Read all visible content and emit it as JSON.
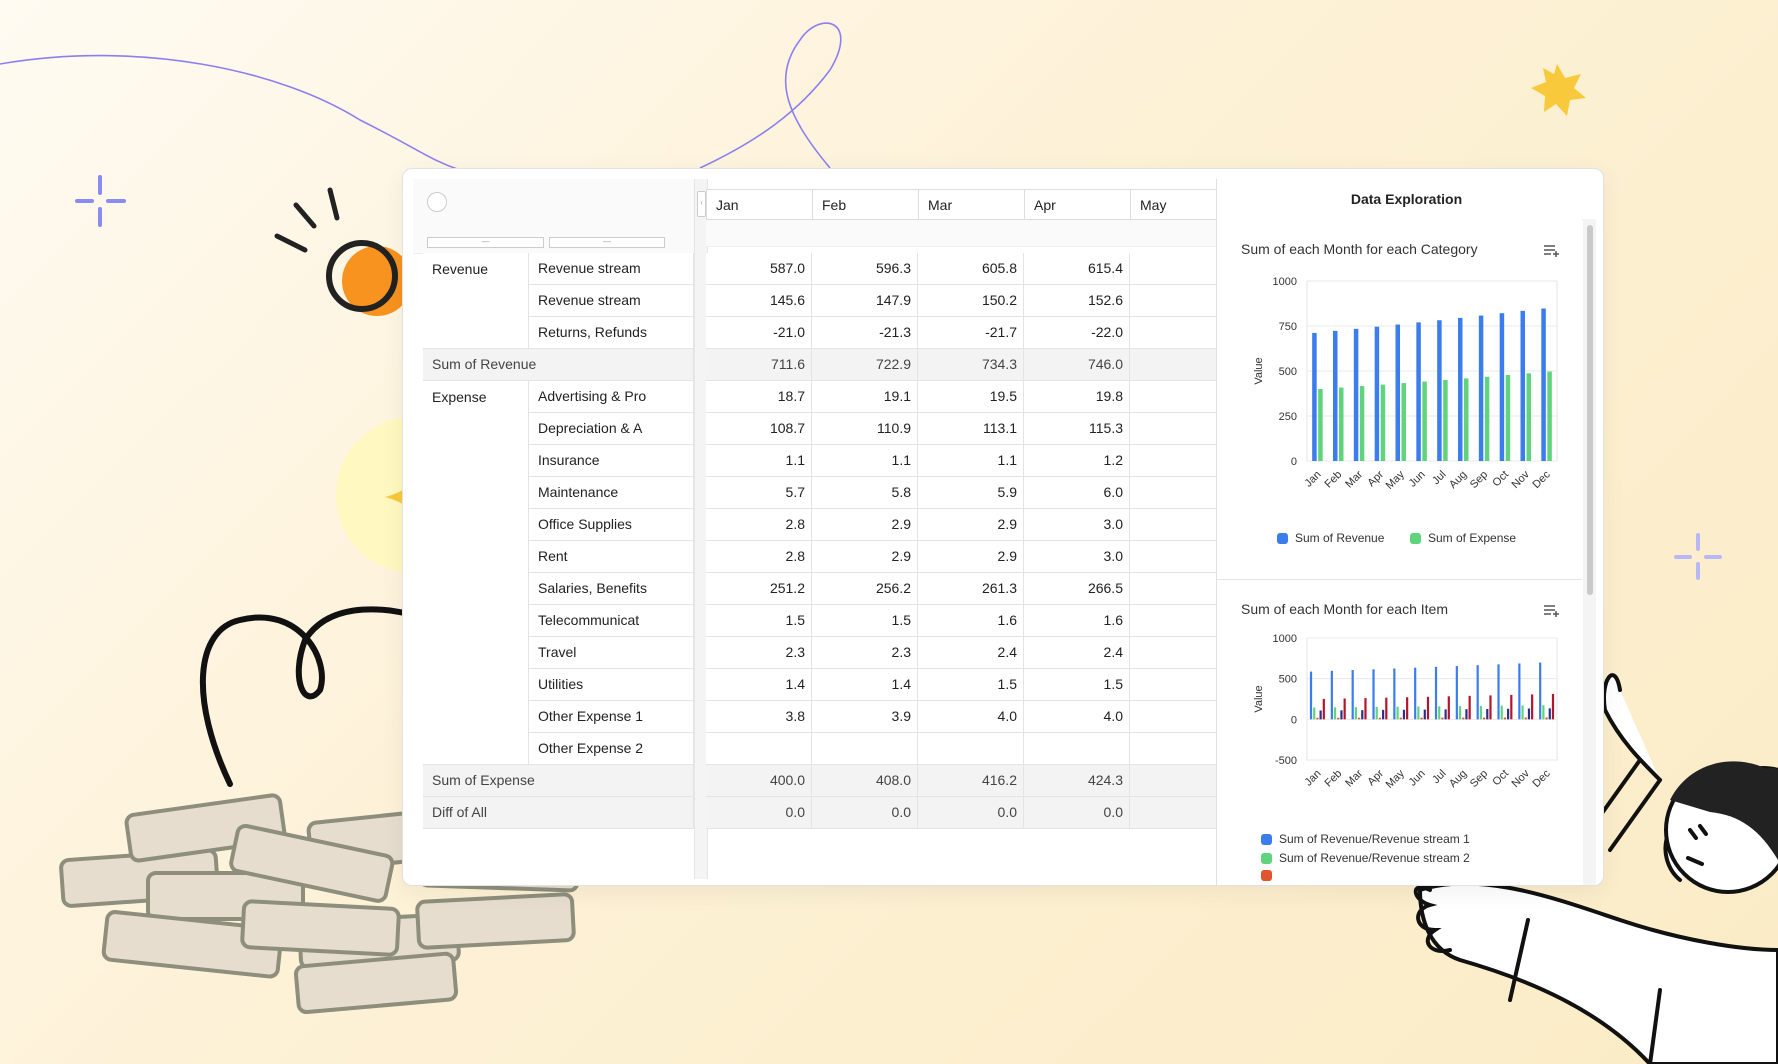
{
  "pivot": {
    "months": [
      "Jan",
      "Feb",
      "Mar",
      "Apr",
      "May"
    ],
    "groups": [
      {
        "label": "Revenue",
        "rows": [
          {
            "item": "Revenue stream",
            "values": [
              "587.0",
              "596.3",
              "605.8",
              "615.4",
              ""
            ]
          },
          {
            "item": "Revenue stream",
            "values": [
              "145.6",
              "147.9",
              "150.2",
              "152.6",
              ""
            ]
          },
          {
            "item": "Returns, Refunds",
            "values": [
              "-21.0",
              "-21.3",
              "-21.7",
              "-22.0",
              ""
            ]
          }
        ]
      },
      {
        "label": "Expense",
        "rows": [
          {
            "item": "Advertising & Pro",
            "values": [
              "18.7",
              "19.1",
              "19.5",
              "19.8",
              ""
            ]
          },
          {
            "item": "Depreciation & A",
            "values": [
              "108.7",
              "110.9",
              "113.1",
              "115.3",
              ""
            ]
          },
          {
            "item": "Insurance",
            "values": [
              "1.1",
              "1.1",
              "1.1",
              "1.2",
              ""
            ]
          },
          {
            "item": "Maintenance",
            "values": [
              "5.7",
              "5.8",
              "5.9",
              "6.0",
              ""
            ]
          },
          {
            "item": "Office Supplies",
            "values": [
              "2.8",
              "2.9",
              "2.9",
              "3.0",
              ""
            ]
          },
          {
            "item": "Rent",
            "values": [
              "2.8",
              "2.9",
              "2.9",
              "3.0",
              ""
            ]
          },
          {
            "item": "Salaries, Benefits",
            "values": [
              "251.2",
              "256.2",
              "261.3",
              "266.5",
              ""
            ]
          },
          {
            "item": "Telecommunicat",
            "values": [
              "1.5",
              "1.5",
              "1.6",
              "1.6",
              ""
            ]
          },
          {
            "item": "Travel",
            "values": [
              "2.3",
              "2.3",
              "2.4",
              "2.4",
              ""
            ]
          },
          {
            "item": "Utilities",
            "values": [
              "1.4",
              "1.4",
              "1.5",
              "1.5",
              ""
            ]
          },
          {
            "item": "Other Expense 1",
            "values": [
              "3.8",
              "3.9",
              "4.0",
              "4.0",
              ""
            ]
          },
          {
            "item": "Other Expense 2",
            "values": [
              "",
              "",
              "",
              "",
              ""
            ]
          }
        ]
      }
    ],
    "totals": {
      "revenue": {
        "label": "Sum of Revenue",
        "values": [
          "711.6",
          "722.9",
          "734.3",
          "746.0",
          ""
        ]
      },
      "expense": {
        "label": "Sum of Expense",
        "values": [
          "400.0",
          "408.0",
          "416.2",
          "424.3",
          ""
        ]
      },
      "diff": {
        "label": "Diff of All",
        "values": [
          "0.0",
          "0.0",
          "0.0",
          "0.0",
          ""
        ]
      }
    }
  },
  "explore": {
    "title": "Data Exploration"
  },
  "chart_data": [
    {
      "type": "bar",
      "title": "Sum of each Month for each Category",
      "ylabel": "Value",
      "categories": [
        "Jan",
        "Feb",
        "Mar",
        "Apr",
        "May",
        "Jun",
        "Jul",
        "Aug",
        "Sep",
        "Oct",
        "Nov",
        "Dec"
      ],
      "ylim": [
        0,
        1000
      ],
      "yticks": [
        0,
        250,
        500,
        750,
        1000
      ],
      "series": [
        {
          "name": "Sum of Revenue",
          "color": "#3b7ded",
          "values": [
            711.6,
            722.9,
            734.3,
            746.0,
            758,
            770,
            782,
            795,
            808,
            821,
            834,
            847
          ]
        },
        {
          "name": "Sum of Expense",
          "color": "#5fd47c",
          "values": [
            400.0,
            408.0,
            416.2,
            424.3,
            433,
            441,
            450,
            459,
            468,
            478,
            487,
            497
          ]
        }
      ]
    },
    {
      "type": "bar",
      "title": "Sum of each Month for each Item",
      "ylabel": "Value",
      "categories": [
        "Jan",
        "Feb",
        "Mar",
        "Apr",
        "May",
        "Jun",
        "Jul",
        "Aug",
        "Sep",
        "Oct",
        "Nov",
        "Dec"
      ],
      "ylim": [
        -500,
        1000
      ],
      "yticks": [
        -500,
        0,
        500,
        1000
      ],
      "series": [
        {
          "name": "Sum of Revenue/Revenue stream 1",
          "color": "#3b7ded",
          "values": [
            587.0,
            596.3,
            605.8,
            615.4,
            625,
            635,
            645,
            655,
            666,
            676,
            687,
            698
          ]
        },
        {
          "name": "Sum of Revenue/Revenue stream 2",
          "color": "#5fd47c",
          "values": [
            145.6,
            147.9,
            150.2,
            152.6,
            155,
            157,
            160,
            162,
            165,
            168,
            170,
            173
          ]
        },
        {
          "name": "",
          "color": "#e0552f",
          "values": [
            18.7,
            19.1,
            19.5,
            19.8,
            20.2,
            20.6,
            21,
            21.4,
            21.8,
            22.2,
            22.6,
            23
          ]
        },
        {
          "name": "",
          "color": "#2e2e8a",
          "values": [
            108.7,
            110.9,
            113.1,
            115.3,
            117.6,
            120,
            122.4,
            124.8,
            127.3,
            129.9,
            132.5,
            135.1
          ]
        },
        {
          "name": "",
          "color": "#b3152a",
          "values": [
            251.2,
            256.2,
            261.3,
            266.5,
            271.8,
            277.2,
            282.8,
            288.4,
            294.2,
            300.1,
            306.1,
            312.2
          ]
        }
      ]
    }
  ]
}
